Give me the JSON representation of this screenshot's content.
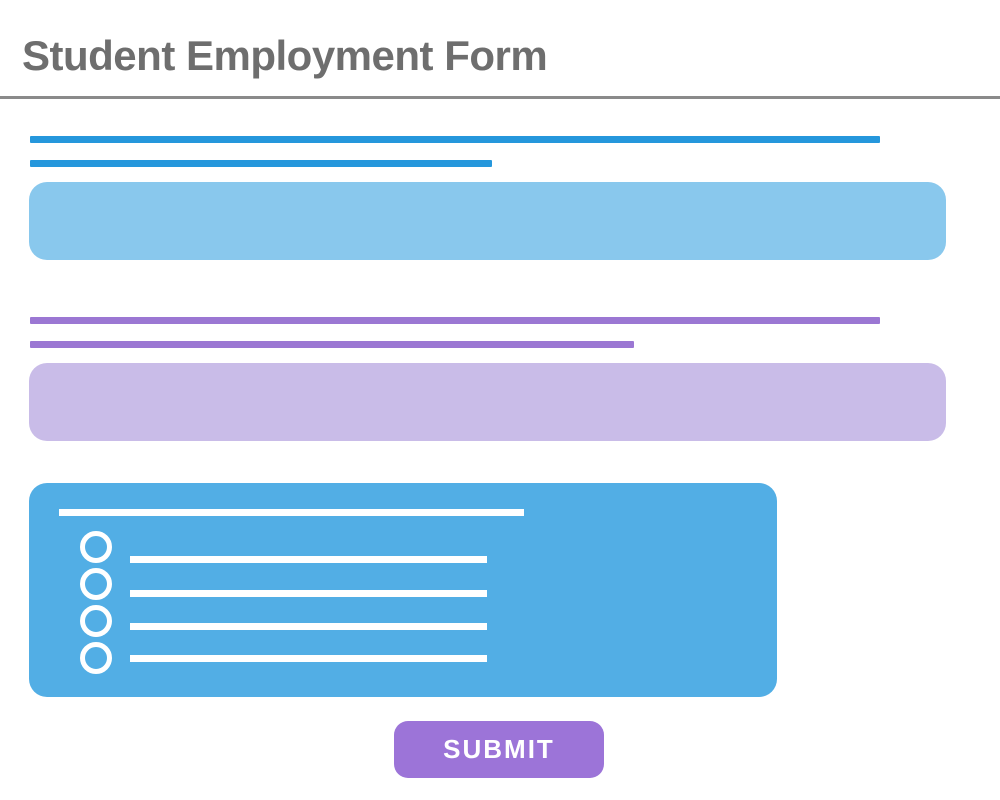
{
  "window": {
    "title": "Student Employment Form"
  },
  "form": {
    "options_panel": {
      "option_count": 4
    },
    "submit_label": "SUBMIT"
  },
  "colors": {
    "title_text": "#6E6E6E",
    "divider": "#8A8A8A",
    "accent_blue": "#2597DC",
    "input_blue": "#89C8ED",
    "accent_purple": "#9B77D3",
    "input_purple": "#C9BCE8",
    "panel_blue": "#52AEE5",
    "button_purple": "#9C74D8",
    "panel_foreground": "#FFFFFF"
  }
}
